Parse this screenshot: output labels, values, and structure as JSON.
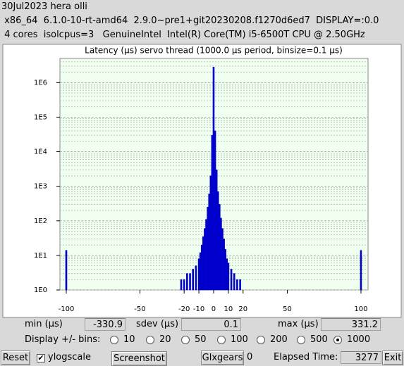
{
  "header": {
    "lines": [
      "30Jul2023 hera olli",
      " x86_64  6.1.0-10-rt-amd64  2.9.0~pre1+git20230208.f1270d6ed7  DISPLAY=:0.0",
      " 4 cores  isolcpus=3   GenuineIntel  Intel(R) Core(TM) i5-6500T CPU @ 2.50GHz"
    ]
  },
  "chart_data": {
    "type": "bar",
    "title": "Latency (µs) servo thread (1000.0 µs period, binsize=0.1 µs)",
    "x": [
      -100,
      -60,
      -40,
      -30,
      -25,
      -22,
      -20,
      -18,
      -16,
      -14,
      -12,
      -10,
      -9,
      -8,
      -7,
      -6,
      -5,
      -4,
      -3,
      -2,
      -1,
      0,
      1,
      2,
      3,
      4,
      5,
      6,
      7,
      8,
      9,
      10,
      12,
      14,
      16,
      18,
      20,
      25,
      30,
      35,
      40,
      60,
      100
    ],
    "values": [
      14,
      1,
      1,
      1,
      1,
      2,
      2,
      3,
      3,
      4,
      5,
      8,
      12,
      20,
      35,
      60,
      110,
      250,
      600,
      2000,
      30000,
      2800000,
      40000,
      3000,
      700,
      300,
      120,
      60,
      30,
      15,
      8,
      6,
      4,
      3,
      2,
      2,
      1,
      1,
      1,
      1,
      1,
      1,
      14
    ],
    "color": "#0000cc",
    "xlim": [
      -104.3,
      104.8
    ],
    "ylim": [
      1,
      5000000
    ],
    "xticks": [
      -100,
      -50,
      -20,
      -10,
      0,
      10,
      20,
      50,
      100
    ],
    "yticks": [
      {
        "value": 1,
        "label": "1E0"
      },
      {
        "value": 10,
        "label": "1E1"
      },
      {
        "value": 100,
        "label": "1E2"
      },
      {
        "value": 1000,
        "label": "1E3"
      },
      {
        "value": 10000,
        "label": "1E4"
      },
      {
        "value": 100000,
        "label": "1E5"
      },
      {
        "value": 1000000,
        "label": "1E6"
      }
    ],
    "ylog": true,
    "grid": true
  },
  "stats": {
    "min_label": "min (µs)",
    "min": -330.9,
    "sdev_label": "sdev (µs)",
    "sdev": 0.1,
    "max_label": "max (µs)",
    "max": 331.2
  },
  "bins_control": {
    "label": "Display +/- bins:",
    "options": [
      10,
      20,
      50,
      100,
      200,
      500,
      1000
    ],
    "selected": 1000
  },
  "toolbar": {
    "reset": "Reset",
    "ylogscale": "ylogscale",
    "ylogscale_checked": true,
    "screenshot": "Screenshot",
    "glxgears": "Glxgears",
    "glxgears_count": 0,
    "elapsed_label": "Elapsed Time:",
    "elapsed": 3277,
    "exit": "Exit"
  }
}
